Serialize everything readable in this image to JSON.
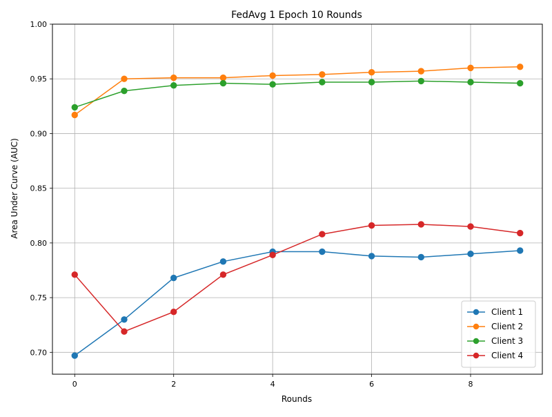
{
  "chart_data": {
    "type": "line",
    "title": "FedAvg 1 Epoch 10 Rounds",
    "xlabel": "Rounds",
    "ylabel": "Area Under Curve (AUC)",
    "x": [
      0,
      1,
      2,
      3,
      4,
      5,
      6,
      7,
      8,
      9
    ],
    "xlim": [
      -0.45,
      9.45
    ],
    "ylim": [
      0.68,
      1.0
    ],
    "x_ticks": [
      0,
      2,
      4,
      6,
      8
    ],
    "x_tick_labels": [
      "0",
      "2",
      "4",
      "6",
      "8"
    ],
    "y_ticks": [
      0.7,
      0.75,
      0.8,
      0.85,
      0.9,
      0.95,
      1.0
    ],
    "y_tick_labels": [
      "0.70",
      "0.75",
      "0.80",
      "0.85",
      "0.90",
      "0.95",
      "1.00"
    ],
    "grid": true,
    "legend_position": "lower-right",
    "series": [
      {
        "name": "Client 1",
        "color": "#1f77b4",
        "marker": "circle",
        "values": [
          0.697,
          0.73,
          0.768,
          0.783,
          0.792,
          0.792,
          0.788,
          0.787,
          0.79,
          0.793
        ]
      },
      {
        "name": "Client 2",
        "color": "#ff7f0e",
        "marker": "circle",
        "values": [
          0.917,
          0.95,
          0.951,
          0.951,
          0.953,
          0.954,
          0.956,
          0.957,
          0.96,
          0.961
        ]
      },
      {
        "name": "Client 3",
        "color": "#2ca02c",
        "marker": "circle",
        "values": [
          0.924,
          0.939,
          0.944,
          0.946,
          0.945,
          0.947,
          0.947,
          0.948,
          0.947,
          0.946
        ]
      },
      {
        "name": "Client 4",
        "color": "#d62728",
        "marker": "circle",
        "values": [
          0.771,
          0.719,
          0.737,
          0.771,
          0.789,
          0.808,
          0.816,
          0.817,
          0.815,
          0.809
        ]
      }
    ]
  }
}
